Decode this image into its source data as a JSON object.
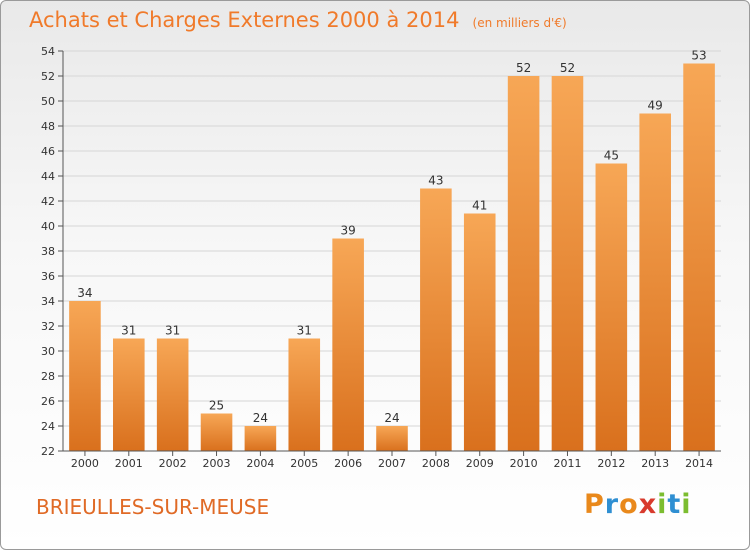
{
  "header": {
    "title": "Achats et Charges Externes 2000 à 2014",
    "subtitle": "(en milliers d'€)"
  },
  "footer": {
    "location": "BRIEULLES-SUR-MEUSE",
    "brand_text": "Proxiti",
    "brand_glyphs": [
      "P",
      "r",
      "o",
      "x",
      "i",
      "t",
      "i"
    ]
  },
  "colors": {
    "title": "#f07a2a",
    "bar_light": "#f7a756",
    "bar_dark": "#d9701d",
    "axis": "#555555",
    "grid": "#d6d6d6"
  },
  "chart_data": {
    "type": "bar",
    "title": "Achats et Charges Externes 2000 à 2014",
    "subtitle": "(en milliers d'€)",
    "xlabel": "",
    "ylabel": "",
    "categories": [
      "2000",
      "2001",
      "2002",
      "2003",
      "2004",
      "2005",
      "2006",
      "2007",
      "2008",
      "2009",
      "2010",
      "2011",
      "2012",
      "2013",
      "2014"
    ],
    "values": [
      34,
      31,
      31,
      25,
      24,
      31,
      39,
      24,
      43,
      41,
      52,
      52,
      45,
      49,
      53
    ],
    "ylim": [
      22,
      54
    ],
    "yticks": [
      22,
      24,
      26,
      28,
      30,
      32,
      34,
      36,
      38,
      40,
      42,
      44,
      46,
      48,
      50,
      52,
      54
    ],
    "grid": true,
    "data_labels": true,
    "legend": "none"
  }
}
